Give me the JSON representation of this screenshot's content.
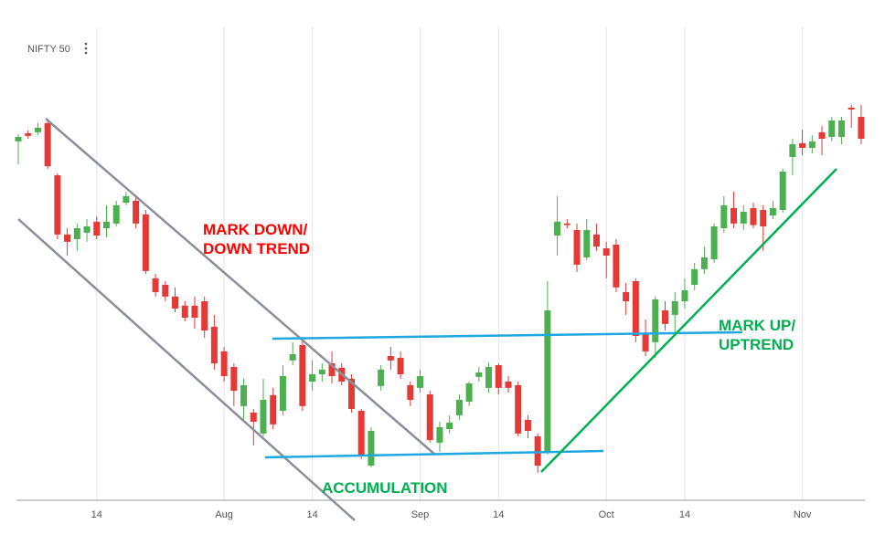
{
  "chart_data": {
    "type": "candlestick",
    "title": "NIFTY 50",
    "categories": [
      null,
      null,
      null,
      null,
      null,
      null,
      null,
      null,
      "14",
      null,
      null,
      null,
      null,
      null,
      null,
      null,
      null,
      null,
      null,
      null,
      null,
      "Aug",
      null,
      null,
      null,
      null,
      null,
      null,
      null,
      null,
      "14",
      null,
      null,
      null,
      null,
      null,
      null,
      null,
      null,
      null,
      null,
      "Sep",
      null,
      null,
      null,
      null,
      null,
      null,
      null,
      "14",
      null,
      null,
      null,
      null,
      null,
      null,
      null,
      null,
      null,
      null,
      "Oct",
      null,
      null,
      null,
      null,
      null,
      null,
      null,
      "14",
      null,
      null,
      null,
      null,
      null,
      null,
      null,
      null,
      null,
      null,
      null,
      "Nov",
      null,
      null,
      null,
      null,
      null,
      null
    ],
    "open": [
      11908,
      11939,
      11943,
      11978,
      11778,
      11551,
      11533,
      11558,
      11600,
      11575,
      11593,
      11673,
      11680,
      11628,
      11383,
      11358,
      11313,
      11278,
      11278,
      11295,
      11197,
      11103,
      11043,
      10893,
      10868,
      10788,
      10935,
      10875,
      11068,
      11127,
      10987,
      11015,
      11057,
      11040,
      10998,
      10875,
      10665,
      10970,
      11085,
      11078,
      10973,
      10963,
      10938,
      10753,
      10805,
      10858,
      10910,
      11005,
      10963,
      11050,
      10987,
      10973,
      10840,
      10777,
      10718,
      11547,
      11593,
      11568,
      11463,
      11551,
      11498,
      11512,
      11330,
      11372,
      11173,
      11138,
      11260,
      11243,
      11295,
      11358,
      11418,
      11456,
      11575,
      11652,
      11593,
      11652,
      11645,
      11624,
      11645,
      11848,
      11901,
      11883,
      11943,
      11925,
      11925,
      12037,
      12002
    ],
    "high": [
      11936,
      11950,
      11978,
      11995,
      11785,
      11575,
      11593,
      11610,
      11621,
      11663,
      11680,
      11715,
      11698,
      11645,
      11400,
      11372,
      11348,
      11295,
      11313,
      11313,
      11243,
      11120,
      11057,
      10998,
      10882,
      10998,
      10963,
      11050,
      11138,
      11148,
      11068,
      11057,
      11103,
      11057,
      11015,
      10882,
      10812,
      11050,
      11120,
      11103,
      10987,
      11033,
      10952,
      10833,
      10858,
      10938,
      10987,
      11043,
      11061,
      11057,
      11008,
      10987,
      10858,
      10788,
      11372,
      11698,
      11610,
      11593,
      11610,
      11593,
      11523,
      11533,
      11365,
      11383,
      11225,
      11313,
      11295,
      11330,
      11383,
      11442,
      11505,
      11593,
      11698,
      11715,
      11663,
      11673,
      11663,
      11680,
      11803,
      11918,
      11953,
      11932,
      11967,
      12002,
      12002,
      12048,
      12048
    ],
    "low": [
      11820,
      11918,
      11932,
      11803,
      11533,
      11470,
      11488,
      11523,
      11533,
      11540,
      11582,
      11663,
      11575,
      11400,
      11313,
      11295,
      11253,
      11218,
      11190,
      11155,
      11033,
      10987,
      10893,
      10840,
      10742,
      10777,
      10805,
      10858,
      11050,
      10875,
      10952,
      10987,
      10980,
      10973,
      10868,
      10690,
      10658,
      10952,
      11033,
      10998,
      10893,
      10945,
      10753,
      10718,
      10788,
      10840,
      10893,
      10987,
      10945,
      10938,
      10945,
      10777,
      10770,
      10637,
      10707,
      11470,
      11575,
      11407,
      11453,
      11488,
      11383,
      11330,
      11243,
      11138,
      11085,
      11078,
      11183,
      11173,
      11267,
      11337,
      11400,
      11442,
      11558,
      11575,
      11568,
      11575,
      11488,
      11610,
      11635,
      11778,
      11855,
      11862,
      11855,
      11908,
      11897,
      11960,
      11897
    ],
    "close": [
      11925,
      11929,
      11960,
      11813,
      11551,
      11523,
      11575,
      11582,
      11547,
      11600,
      11663,
      11698,
      11593,
      11411,
      11330,
      11313,
      11267,
      11232,
      11232,
      11183,
      11057,
      11008,
      10952,
      10973,
      10833,
      10917,
      10823,
      11008,
      11092,
      10893,
      11015,
      11033,
      11008,
      10987,
      10882,
      10700,
      10798,
      11033,
      11068,
      11015,
      10917,
      11008,
      10763,
      10812,
      10830,
      10917,
      10980,
      11022,
      11043,
      10963,
      10963,
      10788,
      10798,
      10665,
      11260,
      11600,
      11587,
      11435,
      11568,
      11505,
      11470,
      11348,
      11295,
      11162,
      11103,
      11302,
      11208,
      11295,
      11337,
      11418,
      11463,
      11582,
      11663,
      11593,
      11638,
      11587,
      11582,
      11652,
      11792,
      11897,
      11883,
      11908,
      11918,
      11988,
      11988,
      12030,
      11918
    ],
    "up_color": "#4caf50",
    "down_color": "#e53935",
    "ylim": [
      10532,
      12310
    ],
    "grid": true,
    "annotations": [
      {
        "lines": [
          "MARK DOWN/",
          "DOWN TREND"
        ],
        "color": "#ff0000"
      },
      {
        "lines": [
          "ACCUMULATION"
        ],
        "color": "#00b050"
      },
      {
        "lines": [
          "MARK UP/",
          "UPTREND"
        ],
        "color": "#00b050"
      }
    ]
  }
}
